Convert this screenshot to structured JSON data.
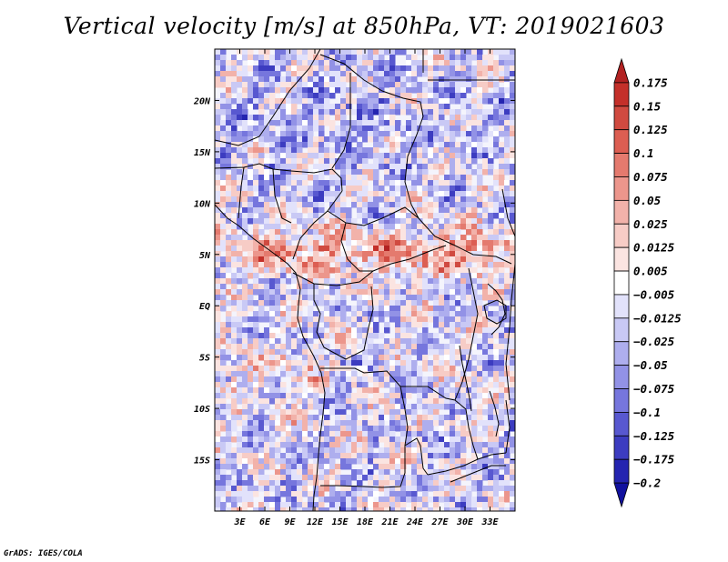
{
  "title": "Vertical velocity [m/s] at 850hPa, VT: 2019021603",
  "credit": "GrADS: IGES/COLA",
  "map": {
    "lon_range": [
      0,
      36
    ],
    "lat_range": [
      -20,
      25
    ],
    "lon_ticks": [
      "3E",
      "6E",
      "9E",
      "12E",
      "15E",
      "18E",
      "21E",
      "24E",
      "27E",
      "30E",
      "33E"
    ],
    "lat_ticks": [
      "20N",
      "15N",
      "10N",
      "5N",
      "EQ",
      "5S",
      "10S",
      "15S"
    ],
    "field": "vertical velocity at 850hPa",
    "units": "m/s"
  },
  "colorbar": {
    "labels": [
      "0.175",
      "0.15",
      "0.125",
      "0.1",
      "0.075",
      "0.05",
      "0.025",
      "0.0125",
      "0.005",
      "-0.005",
      "-0.0125",
      "-0.025",
      "-0.05",
      "-0.075",
      "-0.1",
      "-0.125",
      "-0.175",
      "-0.2"
    ],
    "colors": [
      "#b22222",
      "#c4302a",
      "#d04a40",
      "#dc5e52",
      "#e47a6e",
      "#ec968c",
      "#f2b2aa",
      "#f7ccc6",
      "#fbe4e1",
      "#ffffff",
      "#e2e2fb",
      "#c9c9f5",
      "#aeaeee",
      "#9292e6",
      "#7676dd",
      "#5858d0",
      "#3c3cc0",
      "#2424b0",
      "#11119e"
    ]
  }
}
